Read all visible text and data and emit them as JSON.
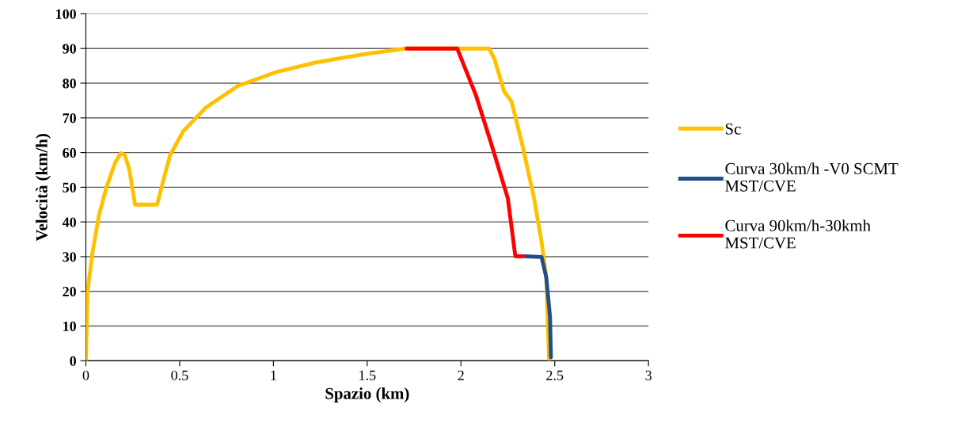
{
  "chart_data": {
    "type": "line",
    "xlabel": "Spazio (km)",
    "ylabel": "Velocità (km/h)",
    "xlim": [
      0,
      3
    ],
    "xticks": [
      0,
      0.5,
      1,
      1.5,
      2,
      2.5,
      3
    ],
    "ylim": [
      0,
      100
    ],
    "yticks": [
      0,
      10,
      20,
      30,
      40,
      50,
      60,
      70,
      80,
      90,
      100
    ],
    "grid": "y",
    "legend": "right",
    "marker": "none",
    "line_style": "solid",
    "series": [
      {
        "name": "Sc",
        "color": "#ffc000",
        "x": [
          0,
          0.008,
          0.034,
          0.07,
          0.11,
          0.155,
          0.186,
          0.207,
          0.232,
          0.262,
          0.38,
          0.41,
          0.45,
          0.52,
          0.64,
          0.81,
          1.02,
          1.23,
          1.49,
          1.71,
          2.15,
          2.18,
          2.23,
          2.27,
          2.33,
          2.39,
          2.43,
          2.455,
          2.47
        ],
        "values": [
          0,
          19.4,
          30.8,
          42,
          50,
          57,
          59.8,
          59.4,
          55,
          45,
          45,
          51.4,
          59.4,
          66.2,
          73,
          79.2,
          83.3,
          86,
          88.4,
          90,
          90,
          86.8,
          77.6,
          74.7,
          61.6,
          46.8,
          34.2,
          24,
          0
        ]
      },
      {
        "name": "Curva 30km/h -V0 SCMT\nMST/CVE",
        "color": "#1f4e8c",
        "x": [
          2.34,
          2.43,
          2.455,
          2.475,
          2.48
        ],
        "values": [
          30.1,
          29.9,
          24,
          12.6,
          1
        ]
      },
      {
        "name": "Curva 90km/h-30kmh\nMST/CVE",
        "color": "#ff0000",
        "x": [
          1.71,
          1.98,
          2.08,
          2.16,
          2.25,
          2.29,
          2.33
        ],
        "values": [
          90,
          90,
          76.5,
          62.8,
          46.8,
          30.1,
          30.1
        ]
      }
    ]
  }
}
